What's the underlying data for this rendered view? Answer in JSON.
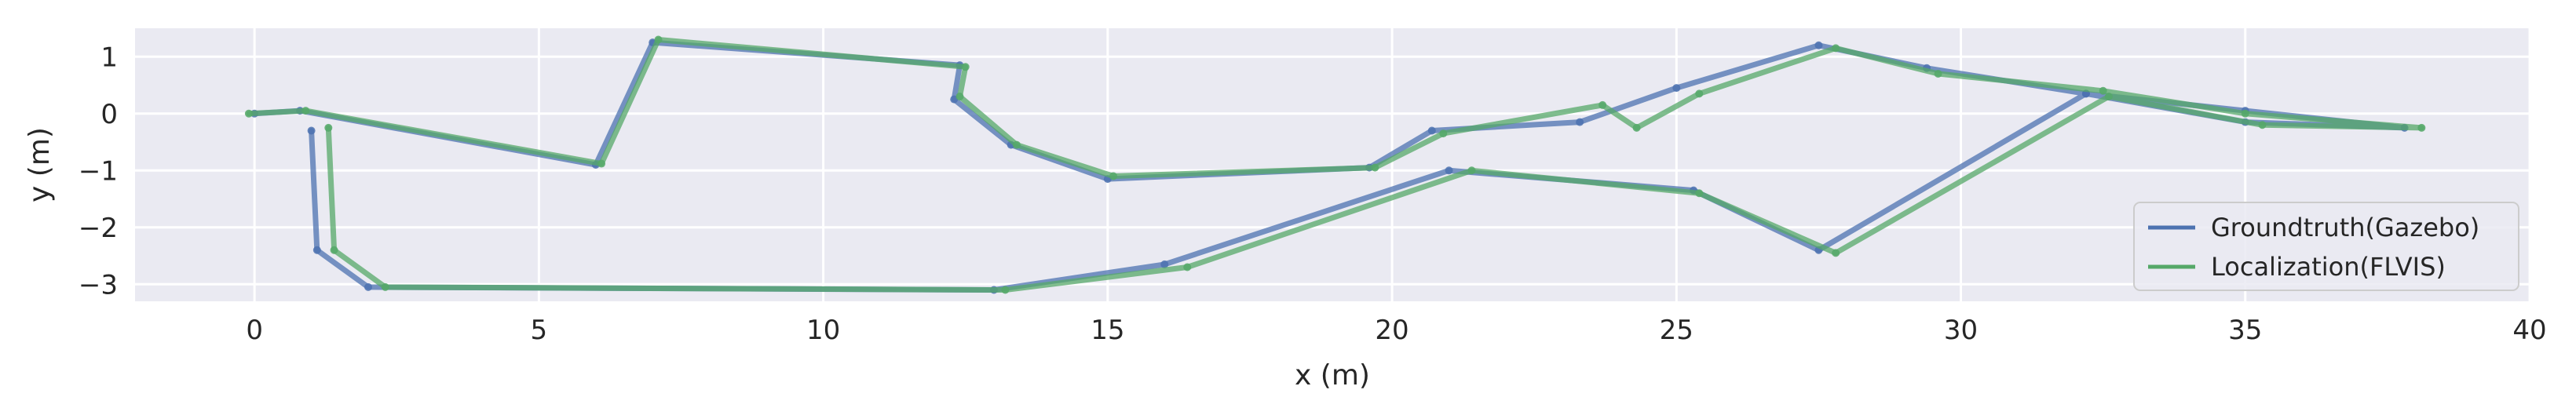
{
  "chart_data": {
    "type": "line",
    "xlabel": "x (m)",
    "ylabel": "y (m)",
    "xlim": [
      -2.1,
      40
    ],
    "ylim": [
      -3.3,
      1.5
    ],
    "xticks": [
      0,
      5,
      10,
      15,
      20,
      25,
      30,
      35,
      40
    ],
    "xtick_labels": [
      "0",
      "5",
      "10",
      "15",
      "20",
      "25",
      "30",
      "35",
      "40"
    ],
    "yticks": [
      1,
      0,
      -1,
      -2,
      -3
    ],
    "ytick_labels": [
      "1",
      "0",
      "−1",
      "−2",
      "−3"
    ],
    "grid": true,
    "legend": "bottom-right",
    "series": [
      {
        "name": "Groundtruth(Gazebo)",
        "color": "#4c72b0",
        "x": [
          0,
          0.8,
          6.0,
          7.0,
          12.4,
          12.3,
          13.3,
          15.0,
          19.6,
          20.7,
          23.3,
          25.0,
          27.5,
          29.4,
          32.2,
          35.0,
          37.8,
          35.0,
          32.2,
          27.5,
          25.3,
          21.0,
          16.0,
          13.0,
          2.0,
          1.1,
          1.0
        ],
        "y": [
          0,
          0.05,
          -0.9,
          1.25,
          0.85,
          0.25,
          -0.55,
          -1.15,
          -0.95,
          -0.3,
          -0.15,
          0.45,
          1.2,
          0.8,
          0.35,
          0.05,
          -0.25,
          -0.15,
          0.35,
          -2.4,
          -1.35,
          -1.0,
          -2.65,
          -3.1,
          -3.05,
          -2.4,
          -0.3
        ]
      },
      {
        "name": "Localization(FLVIS)",
        "color": "#55a868",
        "x": [
          -0.1,
          0.9,
          6.1,
          7.1,
          12.5,
          12.4,
          13.4,
          15.1,
          19.7,
          20.9,
          23.7,
          24.3,
          25.4,
          27.8,
          29.6,
          32.5,
          35.0,
          38.1,
          35.3,
          32.6,
          27.8,
          25.4,
          21.4,
          16.4,
          13.2,
          2.3,
          1.4,
          1.3
        ],
        "y": [
          0,
          0.05,
          -0.88,
          1.3,
          0.82,
          0.3,
          -0.55,
          -1.1,
          -0.95,
          -0.35,
          0.15,
          -0.25,
          0.35,
          1.15,
          0.7,
          0.4,
          0.0,
          -0.25,
          -0.2,
          0.3,
          -2.45,
          -1.4,
          -1.0,
          -2.7,
          -3.1,
          -3.05,
          -2.4,
          -0.25
        ]
      }
    ]
  }
}
